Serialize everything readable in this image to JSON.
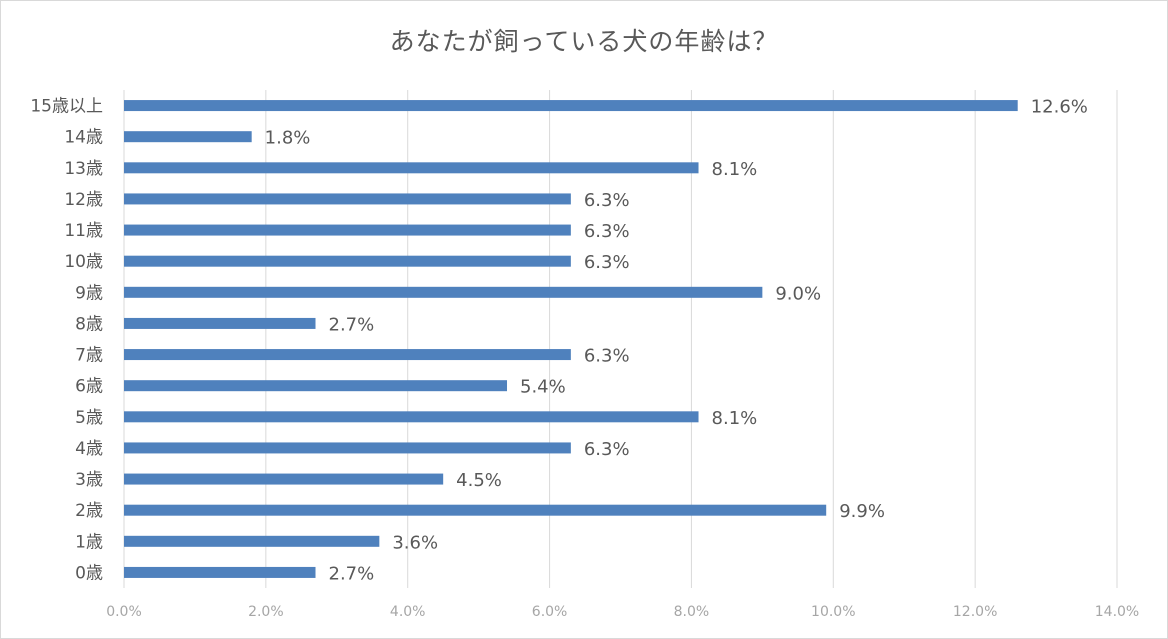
{
  "chart_data": {
    "type": "bar",
    "orientation": "horizontal",
    "title": "あなたが飼っている犬の年齢は？",
    "categories": [
      "15歳以上",
      "14歳",
      "13歳",
      "12歳",
      "11歳",
      "10歳",
      "9歳",
      "8歳",
      "7歳",
      "6歳",
      "5歳",
      "4歳",
      "3歳",
      "2歳",
      "1歳",
      "0歳"
    ],
    "values": [
      12.6,
      1.8,
      8.1,
      6.3,
      6.3,
      6.3,
      9.0,
      2.7,
      6.3,
      5.4,
      8.1,
      6.3,
      4.5,
      9.9,
      3.6,
      2.7
    ],
    "data_labels": [
      "12.6%",
      "1.8%",
      "8.1%",
      "6.3%",
      "6.3%",
      "6.3%",
      "9.0%",
      "2.7%",
      "6.3%",
      "5.4%",
      "8.1%",
      "6.3%",
      "4.5%",
      "9.9%",
      "3.6%",
      "2.7%"
    ],
    "xticks": [
      "0.0%",
      "2.0%",
      "4.0%",
      "6.0%",
      "8.0%",
      "10.0%",
      "12.0%",
      "14.0%"
    ],
    "xlim": [
      0,
      14
    ],
    "xlabel": "",
    "ylabel": "",
    "grid": "vertical",
    "legend": "none",
    "bar_color": "#4f81bd",
    "grid_color": "#d9d9d9"
  }
}
